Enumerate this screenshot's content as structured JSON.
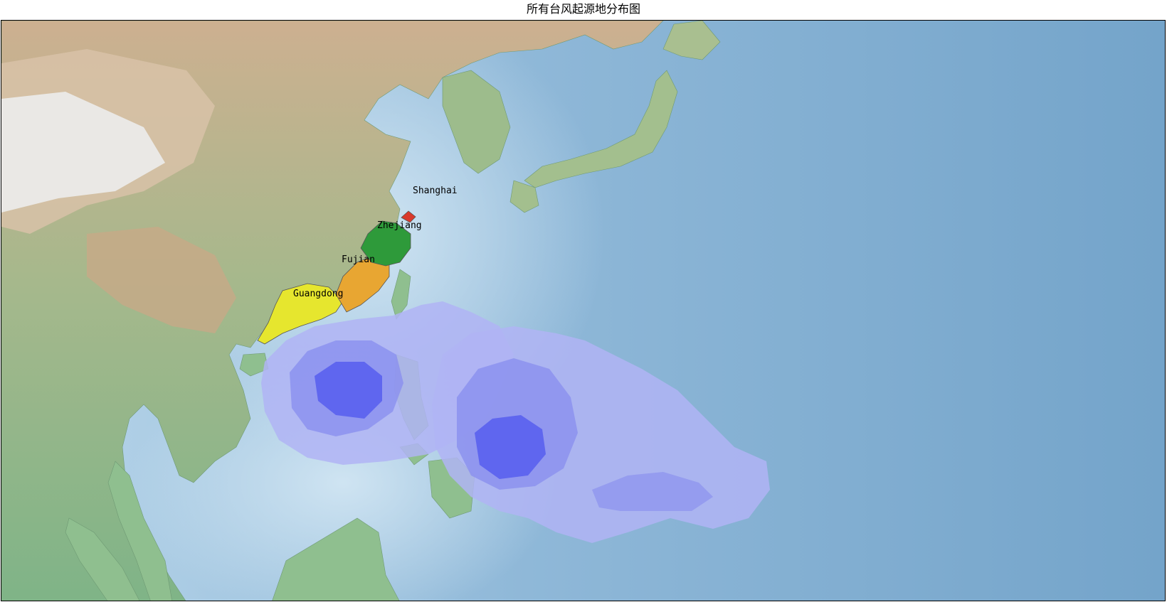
{
  "title": "所有台风起源地分布图",
  "provinces": [
    {
      "name": "Shanghai",
      "color": "#d9392b"
    },
    {
      "name": "Zhejiang",
      "color": "#2e9a3a"
    },
    {
      "name": "Fujian",
      "color": "#e8a632"
    },
    {
      "name": "Guangdong",
      "color": "#e6e62e"
    }
  ],
  "colors": {
    "ocean_deep": "#79a8cc",
    "ocean_shallow": "#c9e0ef",
    "land_low": "#8fbf8f",
    "land_high": "#d4b89a",
    "mountain_snow": "#e8e8e8",
    "density_low": "#b0b4f4",
    "density_mid": "#8c92ee",
    "density_high": "#5a60ee"
  }
}
